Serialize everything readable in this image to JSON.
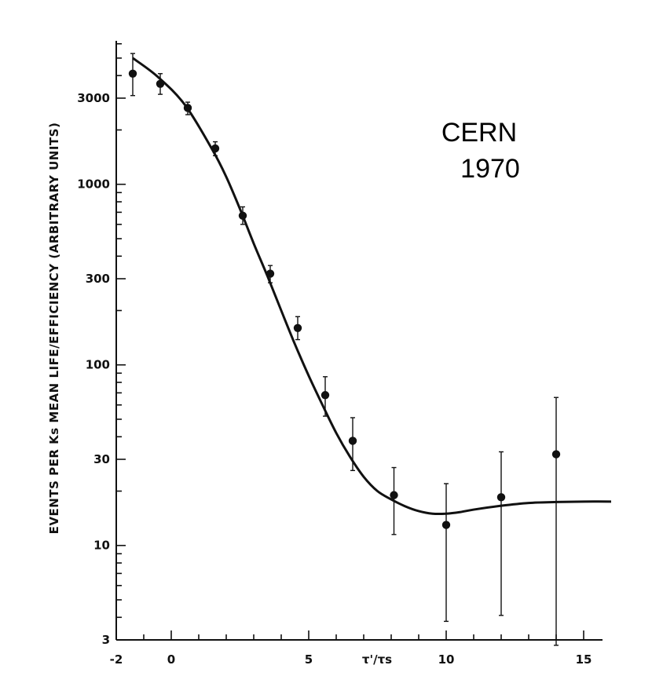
{
  "chart_data": {
    "type": "scatter",
    "title": "",
    "xlabel": "τ'/τs",
    "ylabel": "EVENTS PER Ks MEAN LIFE/EFFICIENCY (ARBITRARY UNITS)",
    "xlim": [
      -2,
      16
    ],
    "ylim": [
      3,
      6000
    ],
    "yscale": "log",
    "grid": false,
    "annotation": [
      "CERN",
      "1970"
    ],
    "x_ticks": [
      -2,
      0,
      5,
      10,
      15
    ],
    "y_ticks": [
      3,
      10,
      30,
      100,
      300,
      1000,
      3000
    ],
    "series": [
      {
        "kind": "points_with_error_bars",
        "x": [
          -1.4,
          -0.4,
          0.6,
          1.6,
          2.6,
          3.6,
          4.6,
          5.6,
          6.6,
          8.1,
          10.0,
          12.0,
          14.0
        ],
        "y": [
          4100,
          3600,
          2650,
          1580,
          670,
          320,
          160,
          68,
          38,
          19,
          13,
          18.5,
          32
        ],
        "yerr_low": [
          3100,
          3150,
          2430,
          1440,
          600,
          285,
          138,
          52,
          26,
          11.5,
          3.8,
          4.1,
          2.8
        ],
        "yerr_high": [
          5300,
          4100,
          2850,
          1720,
          750,
          355,
          185,
          86,
          51,
          27,
          22,
          33,
          66
        ]
      },
      {
        "kind": "fitted_curve",
        "x": [
          -1.4,
          -0.5,
          0.5,
          1.5,
          2.0,
          2.5,
          3.0,
          3.5,
          4.0,
          4.5,
          5.0,
          5.5,
          6.0,
          6.5,
          7.0,
          7.5,
          8.0,
          8.5,
          9.0,
          9.5,
          10.0,
          10.5,
          11.0,
          12.0,
          13.0,
          14.0,
          15.0,
          16.0
        ],
        "y": [
          5000,
          3950,
          2750,
          1550,
          1100,
          730,
          470,
          310,
          200,
          130,
          87,
          60,
          42,
          31,
          24,
          20,
          18,
          16.5,
          15.5,
          15,
          15,
          15.3,
          15.8,
          16.6,
          17.2,
          17.4,
          17.5,
          17.5
        ]
      }
    ]
  }
}
